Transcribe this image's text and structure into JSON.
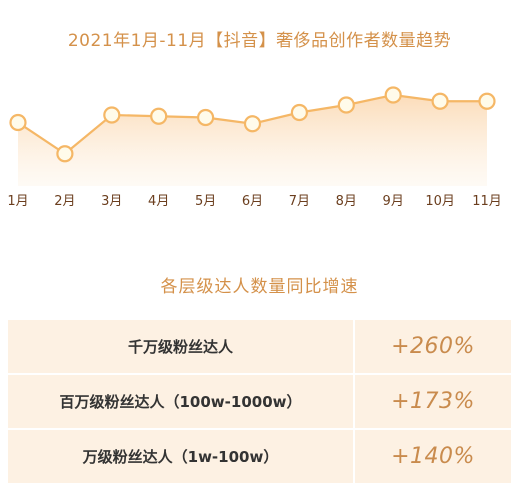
{
  "chart_data": {
    "type": "line",
    "title": "2021年1月-11月【抖音】奢侈品创作者数量趋势",
    "categories": [
      "1月",
      "2月",
      "3月",
      "4月",
      "5月",
      "6月",
      "7月",
      "8月",
      "9月",
      "10月",
      "11月"
    ],
    "values": [
      50,
      25,
      56,
      55,
      54,
      49,
      58,
      64,
      72,
      67,
      67
    ],
    "ylim": [
      0,
      100
    ],
    "grid": false,
    "colors": {
      "line": "#f5b766",
      "marker_fill": "#fffbea",
      "area": "#fbe1c2",
      "axis_label": "#6b3e1e"
    }
  },
  "growth": {
    "title": "各层级达人数量同比增速",
    "rows": [
      {
        "label": "千万级粉丝达人",
        "value": "+260%"
      },
      {
        "label": "百万级粉丝达人（100w-1000w）",
        "value": "+173%"
      },
      {
        "label": "万级粉丝达人（1w-100w）",
        "value": "+140%"
      }
    ],
    "colors": {
      "title": "#d4914a",
      "row_bg": "#fdf1e3",
      "value": "#c98b4d"
    }
  }
}
